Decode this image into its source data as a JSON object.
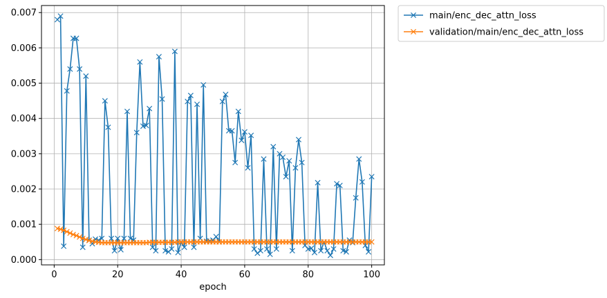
{
  "chart_data": {
    "type": "line",
    "xlabel": "epoch",
    "ylabel": "",
    "xlim": [
      -4,
      104
    ],
    "ylim": [
      -0.00015,
      0.0072
    ],
    "xticks": [
      0,
      20,
      40,
      60,
      80,
      100
    ],
    "yticks": [
      0.0,
      0.001,
      0.002,
      0.003,
      0.004,
      0.005,
      0.006,
      0.007
    ],
    "ytick_labels": [
      "0.000",
      "0.001",
      "0.002",
      "0.003",
      "0.004",
      "0.005",
      "0.006",
      "0.007"
    ],
    "grid": true,
    "legend_position": "outside-top-right",
    "marker": "x",
    "series": [
      {
        "name": "main/enc_dec_attn_loss",
        "color": "#1f77b4",
        "x": [
          1,
          2,
          3,
          4,
          5,
          6,
          7,
          8,
          9,
          10,
          11,
          12,
          13,
          14,
          15,
          16,
          17,
          18,
          19,
          20,
          21,
          22,
          23,
          24,
          25,
          26,
          27,
          28,
          29,
          30,
          31,
          32,
          33,
          34,
          35,
          36,
          37,
          38,
          39,
          40,
          41,
          42,
          43,
          44,
          45,
          46,
          47,
          48,
          49,
          50,
          51,
          52,
          53,
          54,
          55,
          56,
          57,
          58,
          59,
          60,
          61,
          62,
          63,
          64,
          65,
          66,
          67,
          68,
          69,
          70,
          71,
          72,
          73,
          74,
          75,
          76,
          77,
          78,
          79,
          80,
          81,
          82,
          83,
          84,
          85,
          86,
          87,
          88,
          89,
          90,
          91,
          92,
          93,
          94,
          95,
          96,
          97,
          98,
          99,
          100
        ],
        "values": [
          0.0068,
          0.0069,
          0.00038,
          0.00478,
          0.0054,
          0.00627,
          0.00627,
          0.0054,
          0.00035,
          0.0052,
          0.00055,
          0.00045,
          0.00058,
          0.00055,
          0.0006,
          0.0045,
          0.00375,
          0.0006,
          0.00025,
          0.0006,
          0.00028,
          0.0006,
          0.0042,
          0.0006,
          0.00055,
          0.0036,
          0.0056,
          0.00378,
          0.0038,
          0.00428,
          0.00035,
          0.00025,
          0.00575,
          0.00455,
          0.00025,
          0.00022,
          0.0003,
          0.0059,
          0.0002,
          0.0005,
          0.00035,
          0.00448,
          0.00465,
          0.00035,
          0.0044,
          0.0006,
          0.00495,
          0.00052,
          0.00053,
          0.00055,
          0.00065,
          0.0005,
          0.00448,
          0.00468,
          0.00365,
          0.00365,
          0.00275,
          0.0042,
          0.00338,
          0.00362,
          0.0026,
          0.00352,
          0.0003,
          0.00018,
          0.00025,
          0.00285,
          0.0003,
          0.00015,
          0.0032,
          0.0003,
          0.003,
          0.0029,
          0.00235,
          0.0028,
          0.00025,
          0.0026,
          0.0034,
          0.00275,
          0.0004,
          0.0003,
          0.00032,
          0.0002,
          0.00218,
          0.00025,
          0.0005,
          0.00025,
          0.00012,
          0.0003,
          0.00215,
          0.0021,
          0.00025,
          0.00022,
          0.00055,
          0.00048,
          0.00175,
          0.00285,
          0.0022,
          0.0004,
          0.00022,
          0.00235
        ]
      },
      {
        "name": "validation/main/enc_dec_attn_loss",
        "color": "#ff7f0e",
        "x": [
          1,
          2,
          3,
          4,
          5,
          6,
          7,
          8,
          9,
          10,
          11,
          12,
          13,
          14,
          15,
          16,
          17,
          18,
          19,
          20,
          21,
          22,
          23,
          24,
          25,
          26,
          27,
          28,
          29,
          30,
          31,
          32,
          33,
          34,
          35,
          36,
          37,
          38,
          39,
          40,
          41,
          42,
          43,
          44,
          45,
          46,
          47,
          48,
          49,
          50,
          51,
          52,
          53,
          54,
          55,
          56,
          57,
          58,
          59,
          60,
          61,
          62,
          63,
          64,
          65,
          66,
          67,
          68,
          69,
          70,
          71,
          72,
          73,
          74,
          75,
          76,
          77,
          78,
          79,
          80,
          81,
          82,
          83,
          84,
          85,
          86,
          87,
          88,
          89,
          90,
          91,
          92,
          93,
          94,
          95,
          96,
          97,
          98,
          99,
          100
        ],
        "values": [
          0.00088,
          0.00086,
          0.00083,
          0.00079,
          0.00075,
          0.00071,
          0.00068,
          0.00064,
          0.0006,
          0.00057,
          0.00054,
          0.00052,
          0.0005,
          0.00049,
          0.00048,
          0.00048,
          0.00048,
          0.00048,
          0.00048,
          0.00048,
          0.00048,
          0.00048,
          0.00048,
          0.00048,
          0.00048,
          0.00048,
          0.00048,
          0.00048,
          0.00048,
          0.00049,
          0.00049,
          0.00049,
          0.00049,
          0.00049,
          0.00049,
          0.00049,
          0.00049,
          0.00049,
          0.0005,
          0.0005,
          0.0005,
          0.0005,
          0.0005,
          0.0005,
          0.0005,
          0.0005,
          0.0005,
          0.0005,
          0.0005,
          0.0005,
          0.0005,
          0.0005,
          0.0005,
          0.0005,
          0.0005,
          0.0005,
          0.0005,
          0.0005,
          0.0005,
          0.0005,
          0.0005,
          0.0005,
          0.0005,
          0.0005,
          0.0005,
          0.0005,
          0.0005,
          0.0005,
          0.0005,
          0.0005,
          0.0005,
          0.0005,
          0.0005,
          0.0005,
          0.0005,
          0.0005,
          0.0005,
          0.0005,
          0.0005,
          0.0005,
          0.0005,
          0.0005,
          0.0005,
          0.0005,
          0.0005,
          0.0005,
          0.0005,
          0.0005,
          0.0005,
          0.0005,
          0.0005,
          0.0005,
          0.0005,
          0.0005,
          0.0005,
          0.0005,
          0.0005,
          0.0005,
          0.0005,
          0.0005
        ]
      }
    ]
  }
}
